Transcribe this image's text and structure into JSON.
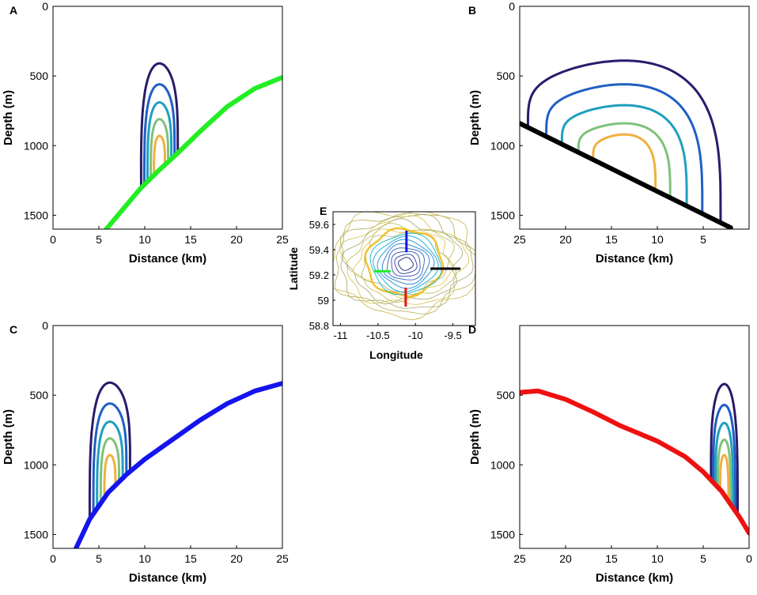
{
  "colors": {
    "contours": [
      "#2b1a6b",
      "#1f5fc4",
      "#1f9fc0",
      "#7fc27a",
      "#f0b040"
    ],
    "topo_green": "#22ee22",
    "topo_black": "#000000",
    "topo_blue": "#1414ee",
    "topo_red": "#ee1111"
  },
  "chart_data": [
    {
      "type": "line",
      "panel": "A",
      "title": "",
      "xlabel": "Distance (km)",
      "ylabel": "Depth (m)",
      "xlim": [
        0,
        25
      ],
      "ylim": [
        1600,
        0
      ],
      "xticks": [
        "0",
        "5",
        "10",
        "15",
        "20",
        "25"
      ],
      "yticks": [
        "0",
        "500",
        "1000",
        "1500"
      ],
      "contours": {
        "center_x": 11.6,
        "top_depths": [
          410,
          560,
          690,
          810,
          930
        ],
        "half_widths": [
          2.0,
          1.65,
          1.3,
          0.95,
          0.6
        ]
      },
      "topography": {
        "name": "green transect",
        "color": "#22ee22",
        "x": [
          5.8,
          9.5,
          11.5,
          13.5,
          16,
          19,
          22,
          25
        ],
        "y": [
          1600,
          1310,
          1180,
          1060,
          900,
          720,
          590,
          510
        ]
      }
    },
    {
      "type": "line",
      "panel": "B",
      "title": "",
      "xlabel": "Distance (km)",
      "ylabel": "Depth (m)",
      "xlim": [
        25,
        0
      ],
      "ylim": [
        1600,
        0
      ],
      "xticks": [
        "25",
        "20",
        "15",
        "10",
        "5"
      ],
      "yticks": [
        "0",
        "500",
        "1000",
        "1500"
      ],
      "contours": {
        "center_x": 13.6,
        "top_depths": [
          390,
          560,
          710,
          840,
          920
        ],
        "half_widths": [
          10.5,
          8.5,
          6.8,
          5.0,
          3.4
        ]
      },
      "topography": {
        "name": "black transect",
        "color": "#000000",
        "x": [
          25,
          2
        ],
        "y": [
          840,
          1590
        ]
      }
    },
    {
      "type": "line",
      "panel": "C",
      "title": "",
      "xlabel": "Distance (km)",
      "ylabel": "Depth (m)",
      "xlim": [
        0,
        25
      ],
      "ylim": [
        1600,
        0
      ],
      "xticks": [
        "0",
        "5",
        "10",
        "15",
        "20",
        "25"
      ],
      "yticks": [
        "0",
        "500",
        "1000",
        "1500"
      ],
      "contours": {
        "center_x": 6.2,
        "top_depths": [
          410,
          560,
          690,
          810,
          930
        ],
        "half_widths": [
          2.2,
          1.8,
          1.4,
          1.0,
          0.6
        ]
      },
      "topography": {
        "name": "blue transect",
        "color": "#1414ee",
        "x": [
          2.5,
          4,
          6,
          8,
          10,
          13,
          16,
          19,
          22,
          25
        ],
        "y": [
          1600,
          1390,
          1200,
          1070,
          960,
          820,
          680,
          560,
          470,
          415
        ]
      }
    },
    {
      "type": "line",
      "panel": "D",
      "title": "",
      "xlabel": "Distance (km)",
      "ylabel": "Depth (m)",
      "xlim": [
        25,
        0
      ],
      "ylim": [
        1600,
        0
      ],
      "xticks": [
        "25",
        "20",
        "15",
        "10",
        "5",
        "0"
      ],
      "yticks": [
        "500",
        "1000",
        "1500"
      ],
      "contours": {
        "center_x": 2.7,
        "top_depths": [
          420,
          570,
          700,
          820,
          930
        ],
        "half_widths": [
          1.45,
          1.2,
          0.95,
          0.7,
          0.45
        ]
      },
      "topography": {
        "name": "red transect",
        "color": "#ee1111",
        "x": [
          25,
          23,
          20,
          17,
          14,
          10,
          7,
          5,
          3,
          1,
          0
        ],
        "y": [
          480,
          470,
          530,
          620,
          720,
          830,
          940,
          1050,
          1190,
          1380,
          1490
        ]
      }
    },
    {
      "type": "map",
      "panel": "E",
      "xlabel": "Longitude",
      "ylabel": "Latitude",
      "xlim": [
        -11.1,
        -9.2
      ],
      "ylim": [
        58.8,
        59.7
      ],
      "xticks": [
        "-11",
        "-10.5",
        "-10",
        "-9.5"
      ],
      "yticks": [
        "59.6",
        "59.4",
        "59.2",
        "59",
        "58.8"
      ],
      "transects": [
        {
          "name": "blue",
          "color": "#1414ee",
          "from": [
            -10.12,
            59.55
          ],
          "to": [
            -10.12,
            59.38
          ]
        },
        {
          "name": "red",
          "color": "#ee1111",
          "from": [
            -10.13,
            59.1
          ],
          "to": [
            -10.13,
            58.95
          ]
        },
        {
          "name": "green",
          "color": "#22ee22",
          "from": [
            -10.55,
            59.23
          ],
          "to": [
            -10.33,
            59.23
          ]
        },
        {
          "name": "black",
          "color": "#000000",
          "from": [
            -9.8,
            59.25
          ],
          "to": [
            -9.4,
            59.25
          ]
        }
      ]
    }
  ]
}
